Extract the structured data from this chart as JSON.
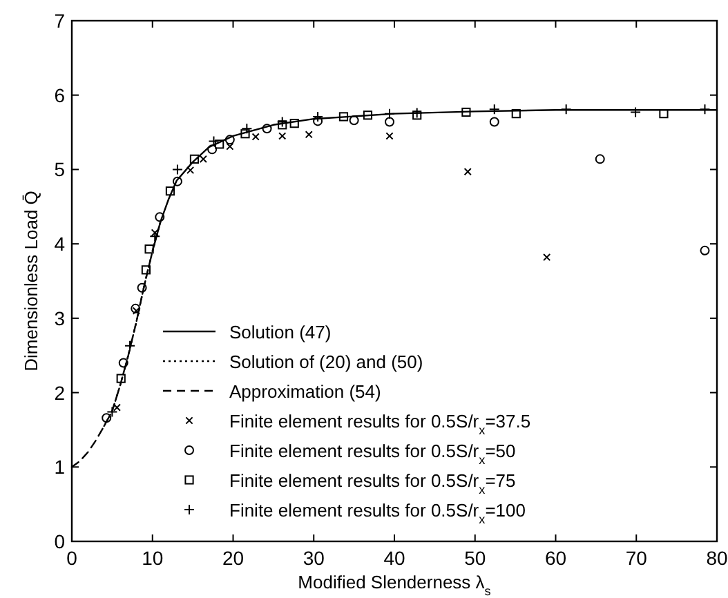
{
  "chart_data": {
    "type": "line",
    "xlabel": "Modified Slenderness λ$_{s}$",
    "ylabel": "Dimensionless Load Q̄",
    "xlim": [
      0,
      80
    ],
    "ylim": [
      0,
      7
    ],
    "xticks": [
      0,
      10,
      20,
      30,
      40,
      50,
      60,
      70,
      80
    ],
    "yticks": [
      0,
      1,
      2,
      3,
      4,
      5,
      6,
      7
    ],
    "grid": false,
    "legend": "bottom",
    "series": [
      {
        "name": "Solution (47)",
        "color": "#000000",
        "line_style": "solid",
        "marker": "none",
        "x": [
          10,
          11,
          12,
          13,
          15,
          17,
          20,
          25,
          30,
          40,
          50,
          60,
          70,
          80
        ],
        "values": [
          3.9,
          4.3,
          4.6,
          4.85,
          5.1,
          5.3,
          5.45,
          5.6,
          5.68,
          5.75,
          5.78,
          5.8,
          5.8,
          5.8
        ]
      },
      {
        "name": "Solution of (20) and (50)",
        "color": "#000000",
        "line_style": "dotted",
        "marker": "none",
        "x": [
          4,
          5,
          6,
          7,
          8,
          9,
          10,
          11
        ],
        "values": [
          1.55,
          1.75,
          2.1,
          2.5,
          2.95,
          3.45,
          3.9,
          4.3
        ]
      },
      {
        "name": "Approximation (54)",
        "color": "#000000",
        "line_style": "dashed",
        "marker": "none",
        "x": [
          0,
          1,
          2,
          3,
          4,
          5,
          6,
          7,
          8,
          9,
          10
        ],
        "values": [
          1.0,
          1.08,
          1.2,
          1.36,
          1.55,
          1.75,
          2.1,
          2.5,
          2.95,
          3.45,
          3.9
        ]
      },
      {
        "name": "Finite element results for 0.5S/r$_{x}$=37.5",
        "color": "#000000",
        "type": "scatter",
        "marker": "x",
        "x": [
          5.6,
          8.0,
          10.3,
          14.7,
          16.3,
          19.6,
          22.8,
          26.1,
          29.4,
          39.4,
          49.1,
          58.9
        ],
        "values": [
          1.8,
          3.1,
          4.15,
          4.99,
          5.14,
          5.31,
          5.44,
          5.45,
          5.47,
          5.45,
          4.97,
          3.82
        ]
      },
      {
        "name": "Finite element results for 0.5S/r$_{x}$=50",
        "color": "#000000",
        "type": "scatter",
        "marker": "circle",
        "x": [
          4.3,
          6.4,
          7.9,
          8.7,
          10.9,
          13.1,
          17.4,
          19.6,
          24.2,
          30.5,
          35.0,
          39.4,
          52.4,
          65.5,
          78.5
        ],
        "values": [
          1.66,
          2.4,
          3.13,
          3.41,
          4.36,
          4.84,
          5.27,
          5.4,
          5.55,
          5.65,
          5.66,
          5.64,
          5.64,
          5.14,
          3.91
        ]
      },
      {
        "name": "Finite element results for 0.5S/r$_{x}$=75",
        "color": "#000000",
        "type": "scatter",
        "marker": "square",
        "x": [
          6.1,
          9.2,
          9.6,
          12.2,
          15.2,
          18.3,
          21.5,
          26.1,
          27.6,
          33.7,
          36.7,
          42.8,
          48.9,
          55.1,
          73.4
        ],
        "values": [
          2.19,
          3.65,
          3.93,
          4.71,
          5.14,
          5.34,
          5.48,
          5.6,
          5.62,
          5.71,
          5.73,
          5.73,
          5.77,
          5.75,
          5.75
        ]
      },
      {
        "name": "Finite element results for 0.5S/r$_{x}$=100",
        "color": "#000000",
        "type": "scatter",
        "marker": "cross",
        "x": [
          5.0,
          7.2,
          10.3,
          13.1,
          17.6,
          21.7,
          26.1,
          30.5,
          39.4,
          42.8,
          52.4,
          61.3,
          69.9,
          78.5
        ],
        "values": [
          1.74,
          2.63,
          4.1,
          5.0,
          5.38,
          5.55,
          5.64,
          5.71,
          5.75,
          5.76,
          5.81,
          5.81,
          5.77,
          5.81
        ]
      }
    ]
  }
}
